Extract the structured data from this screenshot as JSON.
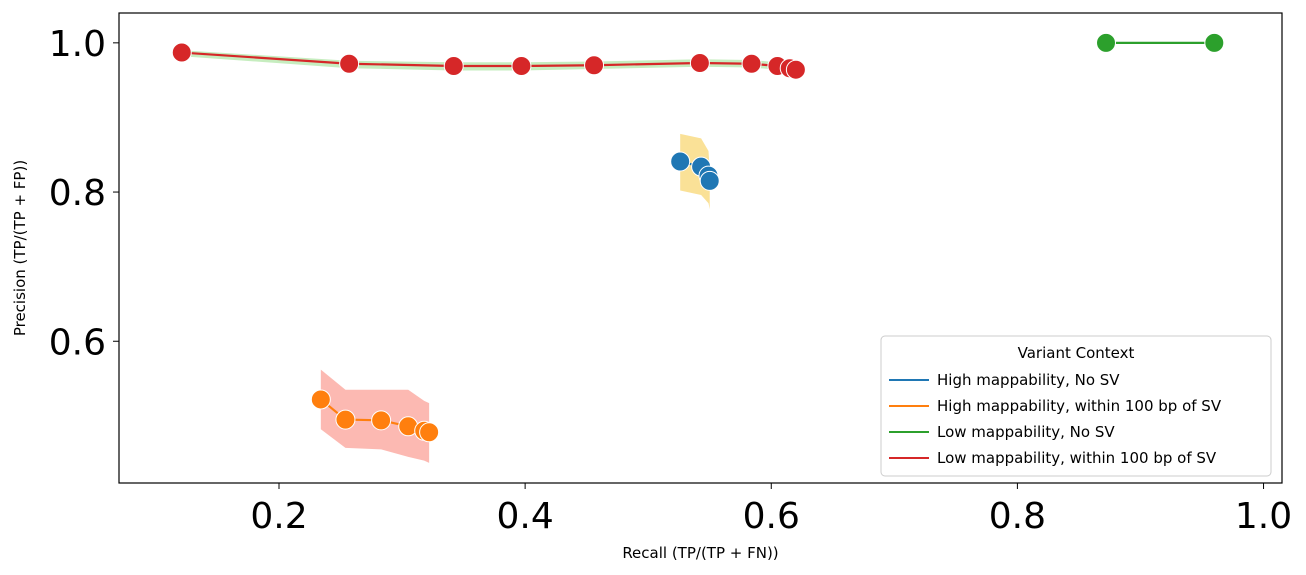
{
  "chart_data": {
    "type": "line",
    "xlabel": "Recall (TP/(TP + FN))",
    "ylabel": "Precision (TP/(TP + FP))",
    "xlim": [
      0.07,
      1.015
    ],
    "ylim": [
      0.41,
      1.04
    ],
    "xticks": [
      0.2,
      0.4,
      0.6,
      0.8,
      1.0
    ],
    "xtick_labels": [
      "0.2",
      "0.4",
      "0.6",
      "0.8",
      "1.0"
    ],
    "yticks": [
      0.6,
      0.8,
      1.0
    ],
    "ytick_labels": [
      "0.6",
      "0.8",
      "1.0"
    ],
    "grid": false,
    "legend": {
      "title": "Variant Context",
      "placement": "lower-right"
    },
    "series": [
      {
        "name": "High mappability, No SV",
        "color": "#1f77b4",
        "band_color": "#f5c842",
        "x": [
          0.526,
          0.543,
          0.549,
          0.55
        ],
        "y": [
          0.841,
          0.834,
          0.822,
          0.815
        ],
        "band_upper": [
          0.878,
          0.872,
          0.855,
          0.83
        ],
        "band_lower": [
          0.802,
          0.796,
          0.785,
          0.777
        ]
      },
      {
        "name": "High mappability, within 100 bp of SV",
        "color": "#ff7f0e",
        "band_color": "#fa8072",
        "x": [
          0.234,
          0.254,
          0.283,
          0.305,
          0.318,
          0.322
        ],
        "y": [
          0.522,
          0.495,
          0.494,
          0.486,
          0.48,
          0.478
        ],
        "band_upper": [
          0.562,
          0.535,
          0.535,
          0.535,
          0.52,
          0.517
        ],
        "band_lower": [
          0.482,
          0.457,
          0.455,
          0.445,
          0.44,
          0.437
        ]
      },
      {
        "name": "Low mappability, No SV",
        "color": "#2ca02c",
        "x": [
          0.872,
          0.96
        ],
        "y": [
          1.0,
          1.0
        ]
      },
      {
        "name": "Low mappability, within 100 bp of SV",
        "color": "#d62728",
        "band_color": "#98df8a",
        "x": [
          0.121,
          0.257,
          0.342,
          0.397,
          0.456,
          0.542,
          0.584,
          0.605,
          0.615,
          0.62
        ],
        "y": [
          0.987,
          0.972,
          0.969,
          0.969,
          0.97,
          0.973,
          0.972,
          0.969,
          0.966,
          0.964
        ],
        "band_upper": [
          0.99,
          0.976,
          0.974,
          0.974,
          0.975,
          0.978,
          0.977,
          0.974,
          0.97,
          0.968
        ],
        "band_lower": [
          0.982,
          0.966,
          0.963,
          0.963,
          0.965,
          0.968,
          0.967,
          0.964,
          0.961,
          0.958
        ]
      }
    ]
  }
}
